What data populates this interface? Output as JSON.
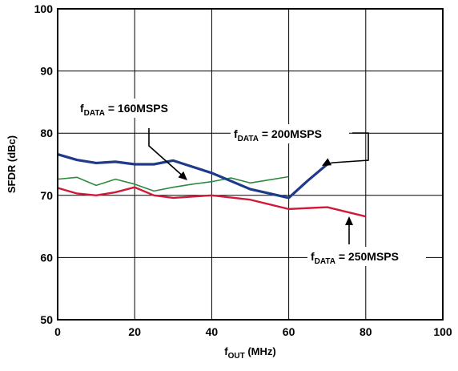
{
  "chart_data": {
    "type": "line",
    "xlabel": {
      "main": "f",
      "sub": "OUT",
      "rest": " (MHz)"
    },
    "ylabel": "SFDR (dBc)",
    "xlim": [
      0,
      100
    ],
    "ylim": [
      50,
      100
    ],
    "xticks": [
      0,
      20,
      40,
      60,
      80,
      100
    ],
    "yticks": [
      50,
      60,
      70,
      80,
      90,
      100
    ],
    "grid": true,
    "series": [
      {
        "name": "fDATA = 160MSPS",
        "color": "#2e8b3e",
        "x": [
          0,
          5,
          10,
          15,
          20,
          25,
          30,
          35,
          40,
          45,
          50,
          55,
          60
        ],
        "y": [
          72.6,
          72.9,
          71.6,
          72.6,
          71.8,
          70.7,
          71.3,
          71.8,
          72.2,
          72.8,
          72.0,
          72.5,
          73.0
        ]
      },
      {
        "name": "fDATA = 200MSPS",
        "color": "#1e3a8a",
        "x": [
          0,
          5,
          10,
          15,
          20,
          25,
          30,
          35,
          40,
          45,
          50,
          55,
          60,
          65,
          70
        ],
        "y": [
          76.6,
          75.7,
          75.2,
          75.4,
          75.0,
          75.0,
          75.6,
          74.6,
          73.6,
          72.3,
          71.0,
          70.3,
          69.6,
          72.4,
          75.0
        ]
      },
      {
        "name": "fDATA = 250MSPS",
        "color": "#d11a3a",
        "x": [
          0,
          5,
          10,
          15,
          20,
          25,
          30,
          40,
          50,
          60,
          70,
          80
        ],
        "y": [
          71.2,
          70.3,
          70.0,
          70.5,
          71.3,
          70.0,
          69.6,
          70.0,
          69.3,
          67.8,
          68.1,
          66.6
        ]
      }
    ],
    "annotations": [
      {
        "main": "f",
        "sub": "DATA",
        "rest": " = 160MSPS",
        "series": 0
      },
      {
        "main": "f",
        "sub": "DATA",
        "rest": " = 200MSPS",
        "series": 1
      },
      {
        "main": "f",
        "sub": "DATA",
        "rest": " = 250MSPS",
        "series": 2
      }
    ]
  }
}
